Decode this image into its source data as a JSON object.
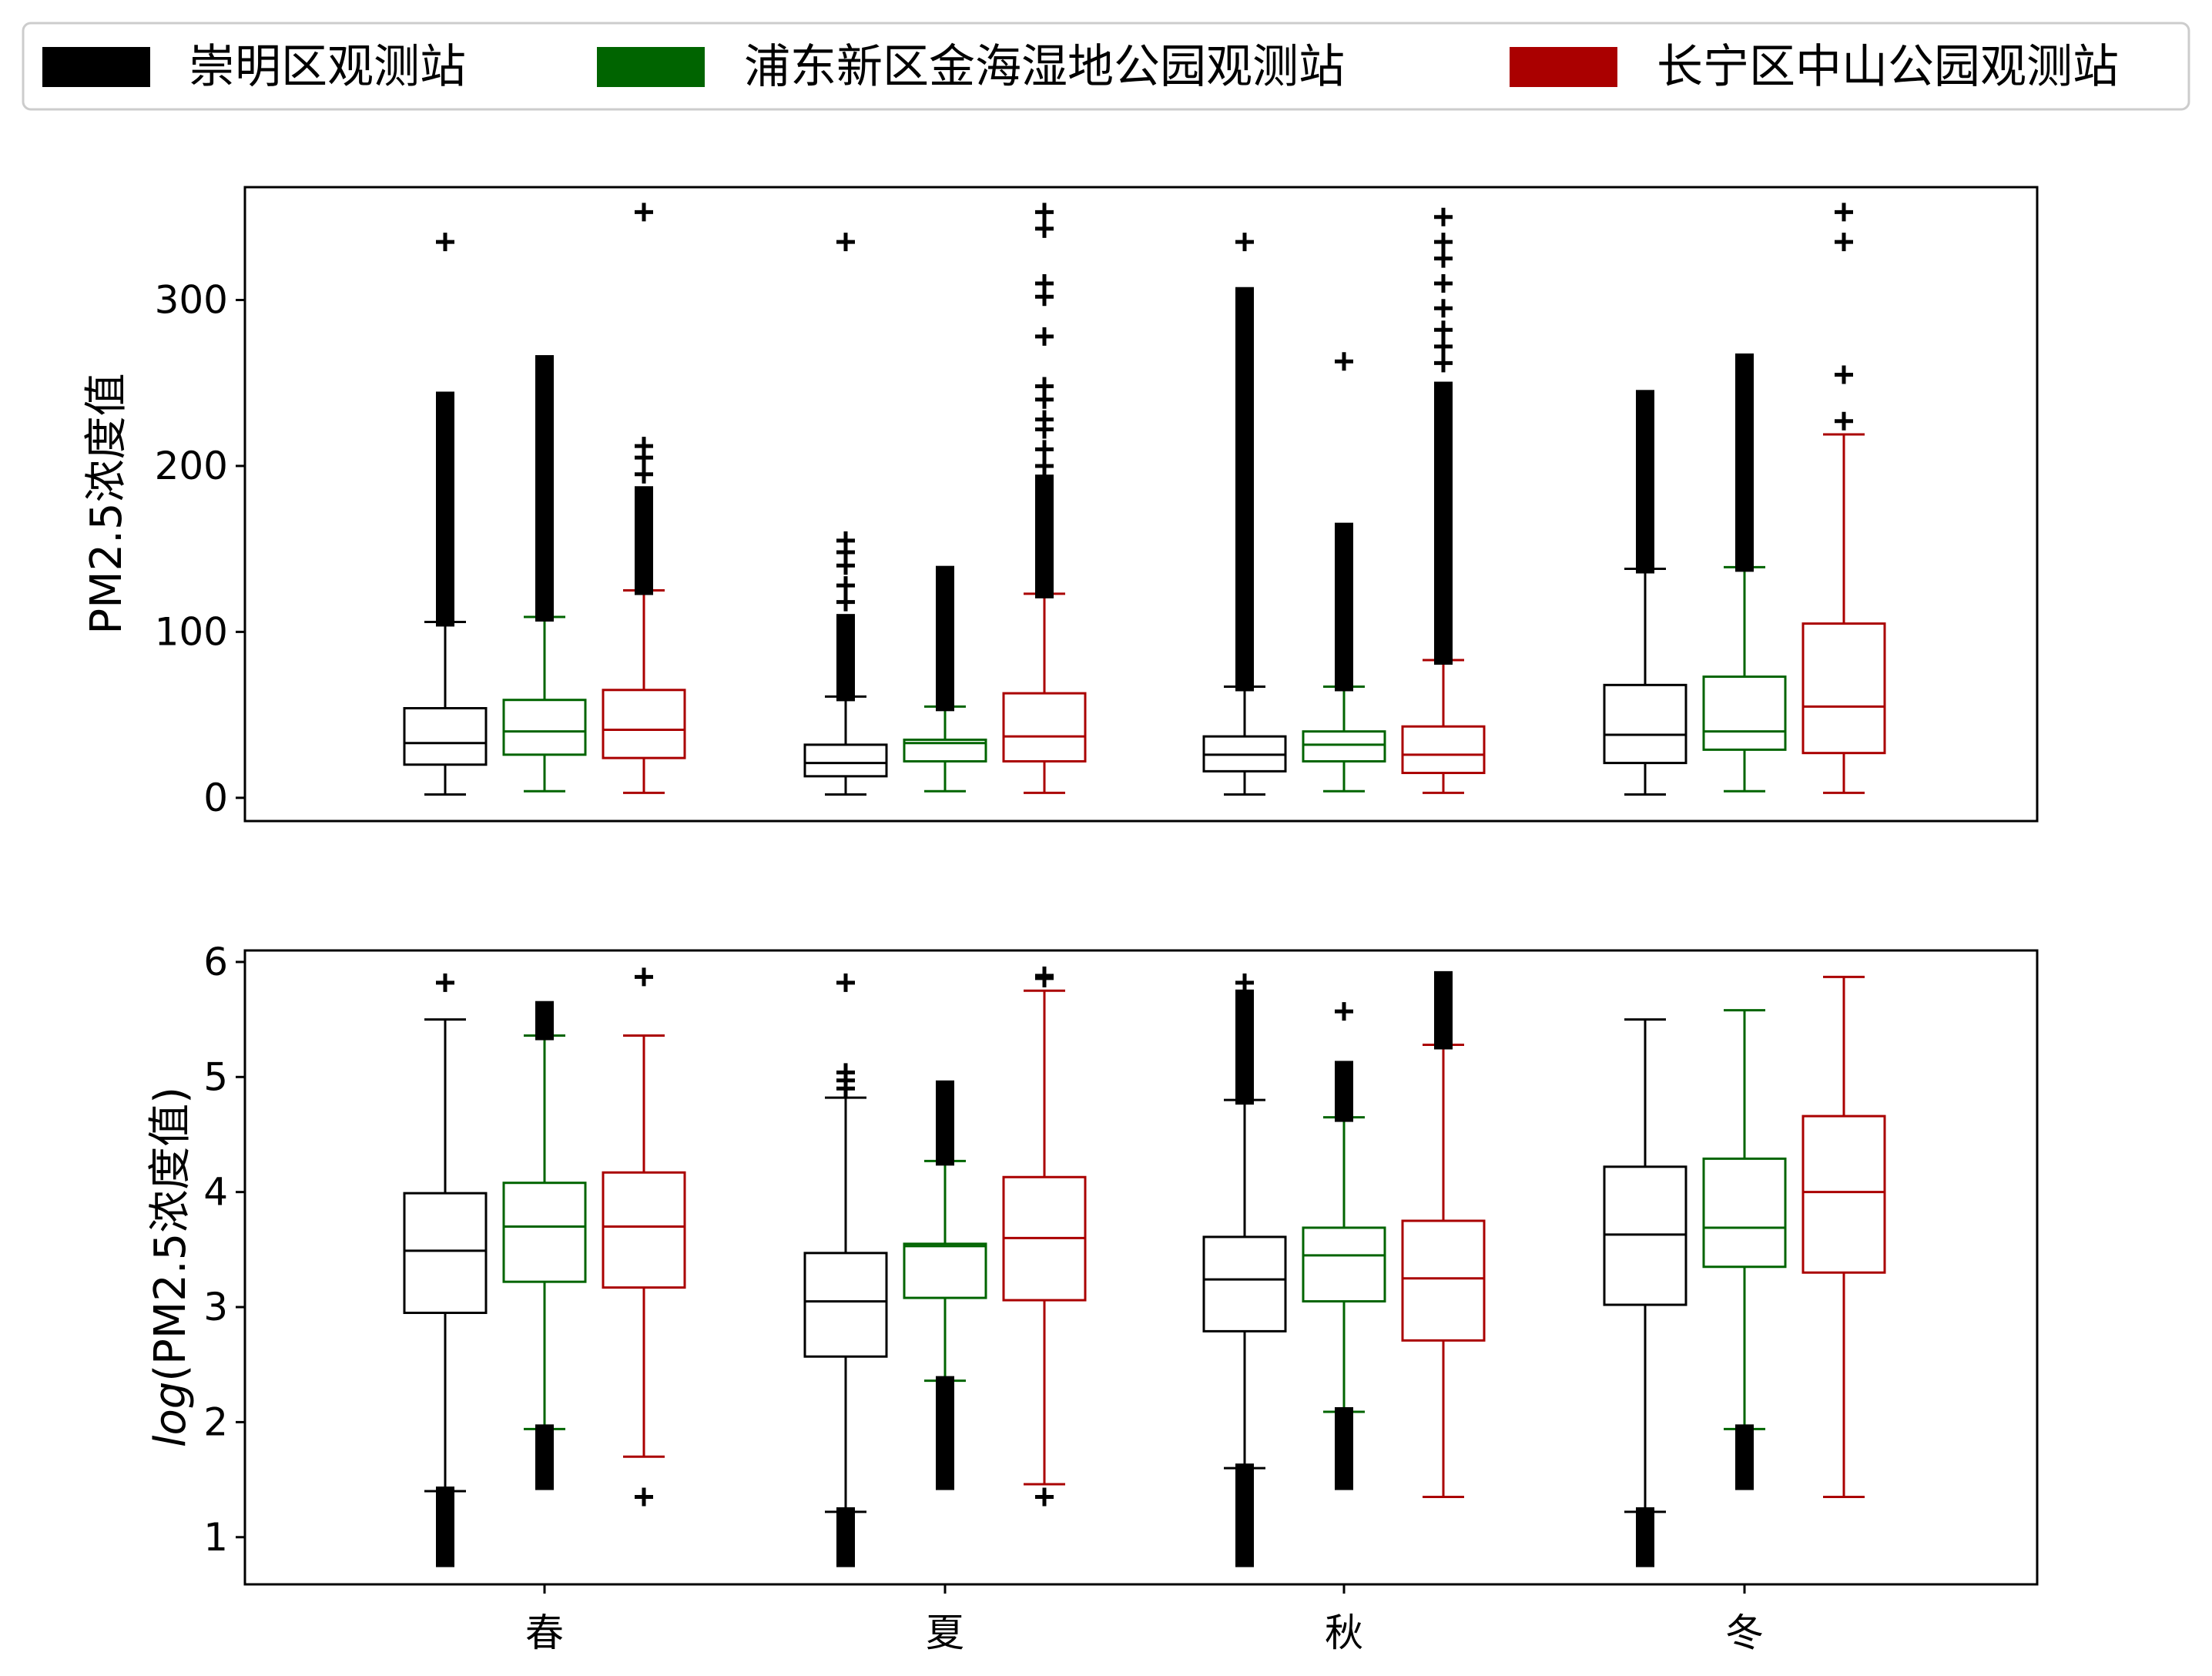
{
  "legend": {
    "entries": [
      {
        "label": "崇明区观测站",
        "color": "#000000"
      },
      {
        "label": "浦东新区金海湿地公园观测站",
        "color": "#006400"
      },
      {
        "label": "长宁区中山公园观测站",
        "color": "#aa0000"
      }
    ],
    "placement": "top"
  },
  "chart_data": [
    {
      "type": "box",
      "title": "",
      "xlabel": "",
      "ylabel": "PM2.5浓度值",
      "ylim": [
        -14,
        368
      ],
      "yticks": [
        "0",
        "100",
        "200",
        "300"
      ],
      "categories": [
        "春",
        "夏",
        "秋",
        "冬"
      ],
      "show_xticks": false,
      "series": [
        {
          "name": "崇明区观测站",
          "color": "#000000",
          "boxes": [
            {
              "whislo": 2,
              "q1": 20,
              "med": 33,
              "q3": 54,
              "whishi": 106,
              "fliers_dense": [
                106,
                242
              ],
              "fliers": [
                335
              ]
            },
            {
              "whislo": 2,
              "q1": 13,
              "med": 21,
              "q3": 32,
              "whishi": 61,
              "fliers_dense": [
                61,
                108
              ],
              "fliers": [
                118,
                128,
                140,
                148,
                155,
                335
              ]
            },
            {
              "whislo": 2,
              "q1": 16,
              "med": 26,
              "q3": 37,
              "whishi": 67,
              "fliers_dense": [
                67,
                305
              ],
              "fliers": [
                335
              ]
            },
            {
              "whislo": 2,
              "q1": 21,
              "med": 38,
              "q3": 68,
              "whishi": 138,
              "fliers_dense": [
                138,
                243
              ],
              "fliers": []
            }
          ]
        },
        {
          "name": "浦东新区金海湿地公园观测站",
          "color": "#006400",
          "boxes": [
            {
              "whislo": 4,
              "q1": 26,
              "med": 40,
              "q3": 59,
              "whishi": 109,
              "fliers_dense": [
                109,
                264
              ],
              "fliers": []
            },
            {
              "whislo": 4,
              "q1": 22,
              "med": 33,
              "q3": 35,
              "whishi": 55,
              "fliers_dense": [
                55,
                137
              ],
              "fliers": []
            },
            {
              "whislo": 4,
              "q1": 22,
              "med": 32,
              "q3": 40,
              "whishi": 67,
              "fliers_dense": [
                67,
                163
              ],
              "fliers": [
                263
              ]
            },
            {
              "whislo": 4,
              "q1": 29,
              "med": 40,
              "q3": 73,
              "whishi": 139,
              "fliers_dense": [
                139,
                265
              ],
              "fliers": []
            }
          ]
        },
        {
          "name": "长宁区中山公园观测站",
          "color": "#aa0000",
          "boxes": [
            {
              "whislo": 3,
              "q1": 24,
              "med": 41,
              "q3": 65,
              "whishi": 125,
              "fliers_dense": [
                125,
                185
              ],
              "fliers": [
                195,
                205,
                212,
                353
              ]
            },
            {
              "whislo": 3,
              "q1": 22,
              "med": 37,
              "q3": 63,
              "whishi": 123,
              "fliers_dense": [
                123,
                192
              ],
              "fliers": [
                200,
                210,
                222,
                228,
                240,
                248,
                278,
                302,
                310,
                343,
                353
              ]
            },
            {
              "whislo": 3,
              "q1": 15,
              "med": 26,
              "q3": 43,
              "whishi": 83,
              "fliers_dense": [
                83,
                248
              ],
              "fliers": [
                262,
                272,
                282,
                295,
                310,
                325,
                335,
                350
              ]
            },
            {
              "whislo": 3,
              "q1": 27,
              "med": 55,
              "q3": 105,
              "whishi": 219,
              "fliers_dense": [],
              "fliers": [
                227,
                255,
                335,
                353
              ]
            }
          ]
        }
      ]
    },
    {
      "type": "box",
      "title": "",
      "xlabel": "",
      "ylabel_italic": "log",
      "ylabel": "(PM2.5浓度值)",
      "ylim": [
        0.59,
        6.1
      ],
      "yticks": [
        "1",
        "2",
        "3",
        "4",
        "5",
        "6"
      ],
      "categories": [
        "春",
        "夏",
        "秋",
        "冬"
      ],
      "show_xticks": true,
      "series": [
        {
          "name": "崇明区观测站",
          "color": "#000000",
          "boxes": [
            {
              "whislo": 1.4,
              "q1": 2.95,
              "med": 3.49,
              "q3": 3.99,
              "whishi": 5.5,
              "fliers_dense": [
                0.78,
                1.4
              ],
              "fliers": [
                5.82
              ]
            },
            {
              "whislo": 1.22,
              "q1": 2.57,
              "med": 3.05,
              "q3": 3.47,
              "whishi": 4.82,
              "fliers_dense": [
                0.78,
                1.22
              ],
              "fliers": [
                4.9,
                4.97,
                5.04,
                5.82
              ]
            },
            {
              "whislo": 1.6,
              "q1": 2.79,
              "med": 3.24,
              "q3": 3.61,
              "whishi": 4.8,
              "fliers_dense": [
                0.78,
                1.6,
                4.8,
                5.72
              ],
              "fliers": [
                5.82
              ]
            },
            {
              "whislo": 1.22,
              "q1": 3.02,
              "med": 3.63,
              "q3": 4.22,
              "whishi": 5.5,
              "fliers_dense": [
                0.78,
                1.22
              ],
              "fliers": []
            }
          ]
        },
        {
          "name": "浦东新区金海湿地公园观测站",
          "color": "#006400",
          "boxes": [
            {
              "whislo": 1.94,
              "q1": 3.22,
              "med": 3.7,
              "q3": 4.08,
              "whishi": 5.36,
              "fliers_dense": [
                1.45,
                1.94,
                5.36,
                5.62
              ],
              "fliers": []
            },
            {
              "whislo": 2.36,
              "q1": 3.08,
              "med": 3.53,
              "q3": 3.55,
              "whishi": 4.27,
              "fliers_dense": [
                1.45,
                2.36,
                4.27,
                4.93
              ],
              "fliers": []
            },
            {
              "whislo": 2.09,
              "q1": 3.05,
              "med": 3.45,
              "q3": 3.69,
              "whishi": 4.65,
              "fliers_dense": [
                1.45,
                2.09,
                4.65,
                5.1
              ],
              "fliers": [
                5.57
              ]
            },
            {
              "whislo": 1.94,
              "q1": 3.35,
              "med": 3.69,
              "q3": 4.29,
              "whishi": 5.58,
              "fliers_dense": [
                1.45,
                1.94
              ],
              "fliers": []
            }
          ]
        },
        {
          "name": "长宁区中山公园观测站",
          "color": "#aa0000",
          "boxes": [
            {
              "whislo": 1.7,
              "q1": 3.17,
              "med": 3.7,
              "q3": 4.17,
              "whishi": 5.36,
              "fliers_dense": [],
              "fliers": [
                1.35,
                5.87
              ]
            },
            {
              "whislo": 1.46,
              "q1": 3.06,
              "med": 3.6,
              "q3": 4.13,
              "whishi": 5.75,
              "fliers_dense": [],
              "fliers": [
                1.35,
                5.86,
                5.88
              ]
            },
            {
              "whislo": 1.35,
              "q1": 2.71,
              "med": 3.25,
              "q3": 3.75,
              "whishi": 5.28,
              "fliers_dense": [
                5.28,
                5.88
              ],
              "fliers": []
            },
            {
              "whislo": 1.35,
              "q1": 3.3,
              "med": 4.0,
              "q3": 4.66,
              "whishi": 5.87,
              "fliers_dense": [],
              "fliers": []
            }
          ]
        }
      ]
    }
  ]
}
